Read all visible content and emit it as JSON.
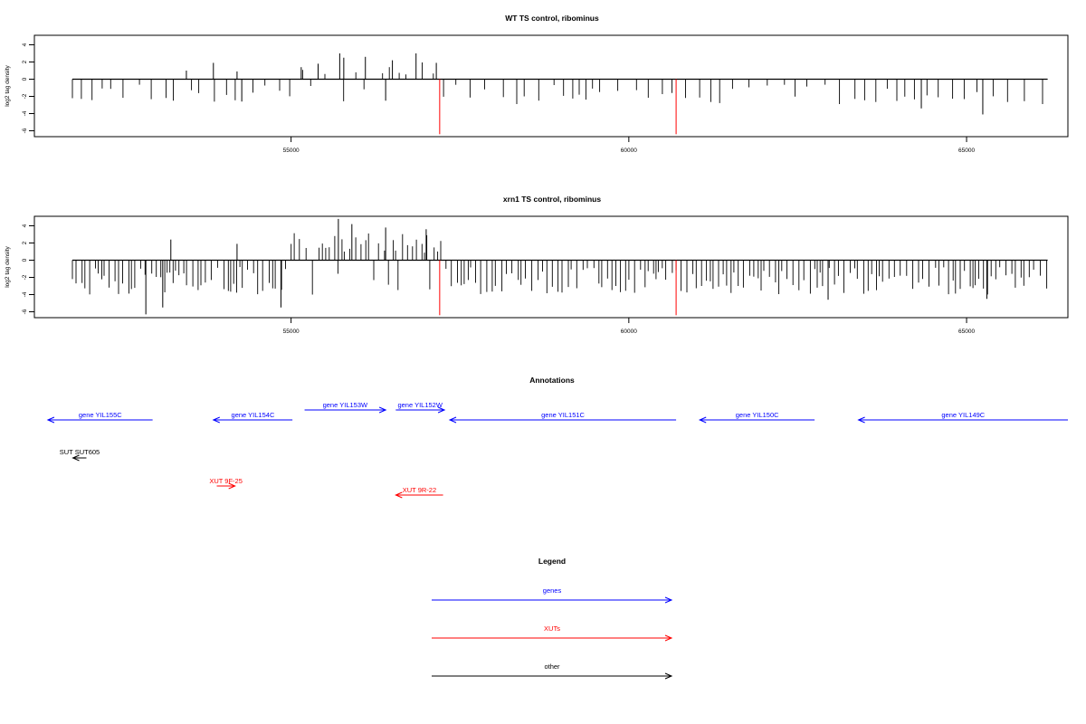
{
  "chart_data": [
    {
      "type": "bar",
      "title": "WT TS control, ribominus",
      "ylabel": "log2 tag density",
      "xlim": [
        51200,
        66500
      ],
      "ylim": [
        -6.5,
        5.2
      ],
      "xticks": [
        55000,
        60000,
        65000
      ],
      "yticks": [
        4,
        2,
        0,
        -2,
        -4,
        -6
      ],
      "baseline_range": [
        51200,
        66200
      ],
      "peaks": [
        {
          "x": 55720,
          "y": 3.0
        },
        {
          "x": 55780,
          "y": 2.5
        },
        {
          "x": 56100,
          "y": 2.6
        },
        {
          "x": 56500,
          "y": 2.2
        },
        {
          "x": 56850,
          "y": 3.0
        },
        {
          "x": 57150,
          "y": 1.9
        },
        {
          "x": 53450,
          "y": 1.0
        },
        {
          "x": 53850,
          "y": 1.9
        },
        {
          "x": 54200,
          "y": 0.9
        },
        {
          "x": 55150,
          "y": 1.4
        },
        {
          "x": 55400,
          "y": 1.8
        }
      ],
      "troughs": [
        {
          "x": 54270,
          "y": -2.6
        },
        {
          "x": 56400,
          "y": -2.5
        },
        {
          "x": 65240,
          "y": -4.1
        },
        {
          "x": 64330,
          "y": -3.4
        }
      ],
      "red_marks": [
        {
          "x": 57200,
          "y": -6.4
        },
        {
          "x": 60700,
          "y": -6.4
        }
      ]
    },
    {
      "type": "bar",
      "title": "xrn1 TS control, ribominus",
      "ylabel": "log2 tag density",
      "xlim": [
        51200,
        66500
      ],
      "ylim": [
        -6.5,
        5.2
      ],
      "xticks": [
        55000,
        60000,
        65000
      ],
      "yticks": [
        4,
        2,
        0,
        -2,
        -4,
        -6
      ],
      "baseline_range": [
        51200,
        66200
      ],
      "peaks": [
        {
          "x": 55700,
          "y": 4.8
        },
        {
          "x": 55900,
          "y": 4.2
        },
        {
          "x": 56400,
          "y": 3.8
        },
        {
          "x": 53220,
          "y": 2.4
        },
        {
          "x": 54200,
          "y": 1.9
        },
        {
          "x": 57000,
          "y": 3.6
        }
      ],
      "troughs": [
        {
          "x": 52850,
          "y": -6.3
        },
        {
          "x": 53100,
          "y": -5.5
        },
        {
          "x": 54850,
          "y": -5.5
        },
        {
          "x": 65300,
          "y": -4.5
        },
        {
          "x": 62950,
          "y": -4.6
        }
      ],
      "red_marks": [
        {
          "x": 57200,
          "y": -6.4
        },
        {
          "x": 60700,
          "y": -6.4
        }
      ]
    }
  ],
  "annotations": {
    "title": "Annotations",
    "genes": [
      {
        "label": "gene YIL155C",
        "start": 52950,
        "end": 51400,
        "row": "main"
      },
      {
        "label": "gene YIL154C",
        "start": 55020,
        "end": 53850,
        "row": "main"
      },
      {
        "label": "gene YIL153W",
        "start": 55200,
        "end": 56400,
        "row": "upper"
      },
      {
        "label": "gene YIL152W",
        "start": 56550,
        "end": 57270,
        "row": "upper"
      },
      {
        "label": "gene YIL151C",
        "start": 60700,
        "end": 57350,
        "row": "main"
      },
      {
        "label": "gene YIL150C",
        "start": 62750,
        "end": 61050,
        "row": "main"
      },
      {
        "label": "gene YIL149C",
        "start": 66500,
        "end": 63400,
        "row": "main"
      }
    ],
    "xuts": [
      {
        "label": "XUT 9F-25",
        "start": 53900,
        "end": 54170
      },
      {
        "label": "XUT 9R-22",
        "start": 57250,
        "end": 56550
      }
    ],
    "other": [
      {
        "label": "SUT SUT605",
        "start": 51300,
        "end": 51100
      }
    ]
  },
  "legend": {
    "title": "Legend",
    "items": [
      {
        "label": "genes",
        "color": "#0000ff"
      },
      {
        "label": "XUTs",
        "color": "#ff0000"
      },
      {
        "label": "other",
        "color": "#000000"
      }
    ]
  },
  "colors": {
    "gene": "#0000ff",
    "xut": "#ff0000",
    "other": "#000000",
    "mark": "#ff0000"
  }
}
